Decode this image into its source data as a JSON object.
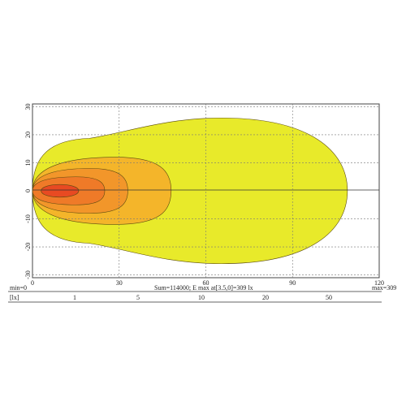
{
  "chart_data": {
    "type": "contour",
    "title": "",
    "xlabel": "",
    "ylabel": "",
    "xlim": [
      0,
      120
    ],
    "ylim": [
      -31,
      31
    ],
    "x_ticks": [
      0,
      30,
      60,
      90,
      120
    ],
    "y_ticks": [
      30,
      20,
      10,
      0,
      -10,
      -20,
      -30
    ],
    "grid": true,
    "contour_levels": [
      {
        "level": 1,
        "color": "#e8ea2a",
        "extent": {
          "x": [
            0,
            109
          ],
          "y": [
            -26,
            26
          ]
        }
      },
      {
        "level": 5,
        "color": "#f4b52a",
        "extent": {
          "x": [
            0,
            48
          ],
          "y": [
            -12,
            12
          ]
        }
      },
      {
        "level": 10,
        "color": "#f2962a",
        "extent": {
          "x": [
            0,
            33
          ],
          "y": [
            -8,
            8
          ]
        }
      },
      {
        "level": 20,
        "color": "#ef7a28",
        "extent": {
          "x": [
            0,
            25
          ],
          "y": [
            -5,
            5
          ]
        }
      },
      {
        "level": 50,
        "color": "#e84a22",
        "extent": {
          "x": [
            3,
            16
          ],
          "y": [
            -3,
            3
          ]
        }
      }
    ],
    "summary": {
      "min_label": "min=0",
      "max_label": "max=309",
      "center_text": "Sum=114000; E  max at[3.5,0]=309 lx"
    },
    "legend": {
      "unit_label": "[lx]",
      "values": [
        "1",
        "5",
        "10",
        "20",
        "50"
      ]
    }
  }
}
